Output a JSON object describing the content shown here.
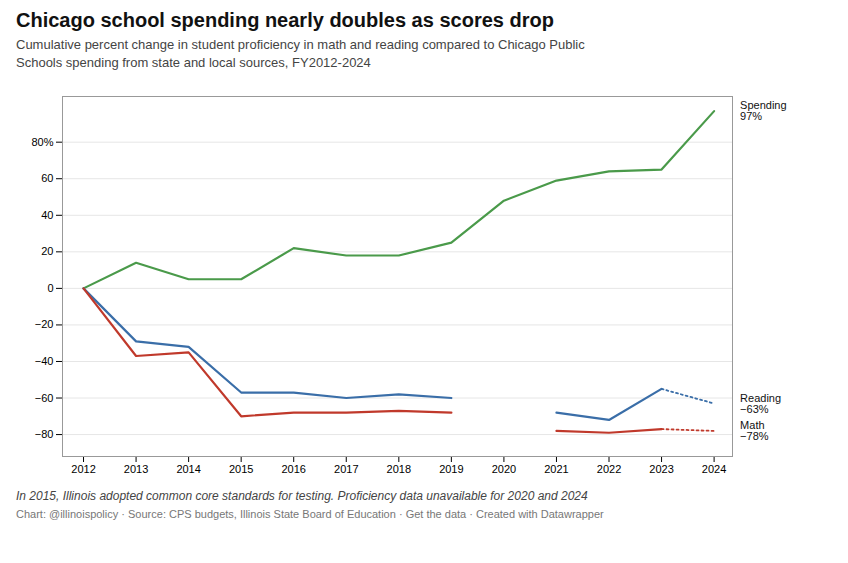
{
  "chart_data": {
    "type": "line",
    "title": "Chicago school spending nearly doubles as scores drop",
    "subtitle": "Cumulative percent change in student proficiency in math and reading compared to Chicago Public\nSchools spending from state and local sources, FY2012-2024",
    "footnote": "In 2015, Illinois adopted common core standards for testing. Proficiency data unavailable for 2020 and 2024",
    "source": "Chart: @illinoispolicy · Source: CPS budgets, Illinois State Board of Education · Get the data · Created with Datawrapper",
    "x": [
      2012,
      2013,
      2014,
      2015,
      2016,
      2017,
      2018,
      2019,
      2020,
      2021,
      2022,
      2023,
      2024
    ],
    "series": [
      {
        "name": "Spending",
        "color": "#4a9a4a",
        "line_style": "solid",
        "values": [
          0,
          14,
          5,
          5,
          22,
          18,
          18,
          25,
          48,
          59,
          64,
          65,
          97
        ]
      },
      {
        "name": "Reading",
        "color": "#3a6ea8",
        "line_style": "solid",
        "values": [
          0,
          -29,
          -32,
          -57,
          -57,
          -60,
          -58,
          -60,
          null,
          -68,
          -72,
          -55,
          null
        ]
      },
      {
        "name": "Reading",
        "color": "#3a6ea8",
        "line_style": "dotted",
        "values": [
          null,
          null,
          null,
          null,
          null,
          null,
          null,
          null,
          null,
          null,
          null,
          -55,
          -63
        ]
      },
      {
        "name": "Math",
        "color": "#c0392b",
        "line_style": "solid",
        "values": [
          0,
          -37,
          -35,
          -70,
          -68,
          -68,
          -67,
          -68,
          null,
          -78,
          -79,
          -77,
          null
        ]
      },
      {
        "name": "Math",
        "color": "#c0392b",
        "line_style": "dotted",
        "values": [
          null,
          null,
          null,
          null,
          null,
          null,
          null,
          null,
          null,
          null,
          null,
          -77,
          -78
        ]
      }
    ],
    "annotations": [
      {
        "text": "Spending\n97%",
        "x": 2024,
        "y": 97
      },
      {
        "text": "Reading\n−63%",
        "x": 2024,
        "y": -63
      },
      {
        "text": "Math\n−78%",
        "x": 2024,
        "y": -78
      }
    ],
    "xlim": [
      2011.6,
      2024.35
    ],
    "xticks": [
      2012,
      2013,
      2014,
      2015,
      2016,
      2017,
      2018,
      2019,
      2020,
      2021,
      2022,
      2023,
      2024
    ],
    "ylim": [
      -92,
      105
    ],
    "yticks": [
      {
        "value": -80,
        "label": "−80"
      },
      {
        "value": -60,
        "label": "−60"
      },
      {
        "value": -40,
        "label": "−40"
      },
      {
        "value": -20,
        "label": "−20"
      },
      0,
      20,
      40,
      60,
      {
        "value": 80,
        "label": "80%"
      }
    ],
    "grid": true
  }
}
